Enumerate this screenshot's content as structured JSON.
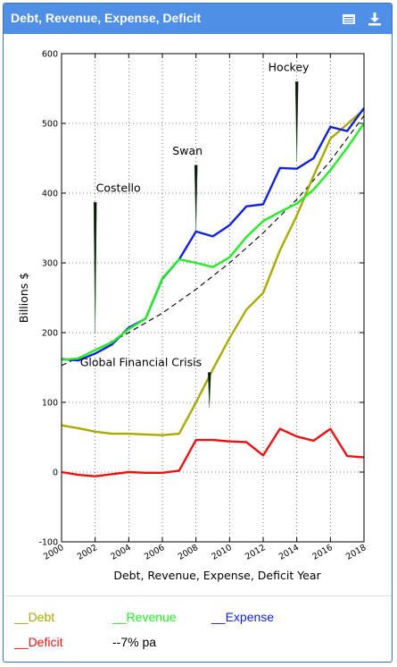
{
  "header": {
    "title": "Debt, Revenue, Expense, Deficit",
    "icons": [
      "table-icon",
      "download-icon"
    ]
  },
  "chart_data": {
    "type": "line",
    "title": "",
    "xlabel": "Debt, Revenue, Expense, Deficit Year",
    "ylabel": "Billions $",
    "xlim": [
      2000,
      2018
    ],
    "ylim": [
      -100,
      600
    ],
    "xticks": [
      2000,
      2002,
      2004,
      2006,
      2008,
      2010,
      2012,
      2014,
      2016,
      2018
    ],
    "yticks": [
      -100,
      0,
      100,
      200,
      300,
      400,
      500,
      600
    ],
    "grid": true,
    "series": [
      {
        "name": "Debt",
        "color": "#aaaa00",
        "x": [
          2000,
          2001,
          2002,
          2003,
          2004,
          2005,
          2006,
          2007,
          2008,
          2009,
          2010,
          2011,
          2012,
          2013,
          2014,
          2015,
          2016,
          2017,
          2018
        ],
        "y": [
          67,
          63,
          58,
          55,
          55,
          54,
          53,
          55,
          100,
          147,
          192,
          233,
          257,
          318,
          368,
          425,
          478,
          499,
          520
        ]
      },
      {
        "name": "Revenue",
        "color": "#22ee22",
        "x": [
          2000,
          2001,
          2002,
          2003,
          2004,
          2005,
          2006,
          2007,
          2008,
          2009,
          2010,
          2011,
          2012,
          2013,
          2014,
          2015,
          2016,
          2017,
          2018
        ],
        "y": [
          161,
          163,
          175,
          186,
          205,
          220,
          278,
          305,
          300,
          294,
          308,
          337,
          360,
          373,
          385,
          405,
          433,
          465,
          500
        ]
      },
      {
        "name": "Expense",
        "color": "#1122dd",
        "x": [
          2000,
          2001,
          2002,
          2003,
          2004,
          2005,
          2006,
          2007,
          2008,
          2009,
          2010,
          2011,
          2012,
          2013,
          2014,
          2015,
          2016,
          2017,
          2018
        ],
        "y": [
          162,
          160,
          170,
          183,
          207,
          220,
          277,
          305,
          345,
          338,
          354,
          381,
          384,
          436,
          435,
          450,
          495,
          489,
          522
        ]
      },
      {
        "name": "Deficit",
        "color": "#ee1111",
        "x": [
          2000,
          2001,
          2002,
          2003,
          2004,
          2005,
          2006,
          2007,
          2008,
          2009,
          2010,
          2011,
          2012,
          2013,
          2014,
          2015,
          2016,
          2017,
          2018
        ],
        "y": [
          0,
          -4,
          -6,
          -3,
          0,
          -1,
          -1,
          2,
          46,
          46,
          44,
          43,
          24,
          62,
          51,
          45,
          62,
          23,
          21
        ]
      },
      {
        "name": "7% pa",
        "color": "#000000",
        "dashed": true,
        "x": [
          2000,
          2002,
          2004,
          2006,
          2008,
          2010,
          2012,
          2014,
          2016,
          2018
        ],
        "y": [
          153,
          175,
          200,
          228,
          262,
          300,
          343,
          391,
          446,
          511
        ]
      }
    ],
    "annotations": [
      {
        "text": "Costello",
        "x": 2002,
        "y_top": 387,
        "y_bottom": 200,
        "label_x": 2002.05,
        "label_y": 402
      },
      {
        "text": "Swan",
        "x": 2008,
        "y_top": 440,
        "y_bottom": 346,
        "label_x": 2006.6,
        "label_y": 455
      },
      {
        "text": "Hockey",
        "x": 2014,
        "y_top": 560,
        "y_bottom": 445,
        "label_x": 2012.3,
        "label_y": 575
      },
      {
        "text": "Global Financial Crisis",
        "x": 2008.8,
        "y_top": 143,
        "y_bottom": 92,
        "label_x": 2001.1,
        "label_y": 152
      }
    ]
  },
  "legend": {
    "debt": "__Debt",
    "revenue": "__Revenue",
    "expense": "__Expense",
    "deficit": "__Deficit",
    "trend": "--7% pa"
  },
  "colors": {
    "header_bg": "#4f8fe6",
    "debt": "#aaaa00",
    "revenue": "#22ee22",
    "expense": "#1122dd",
    "deficit": "#ee1111"
  }
}
